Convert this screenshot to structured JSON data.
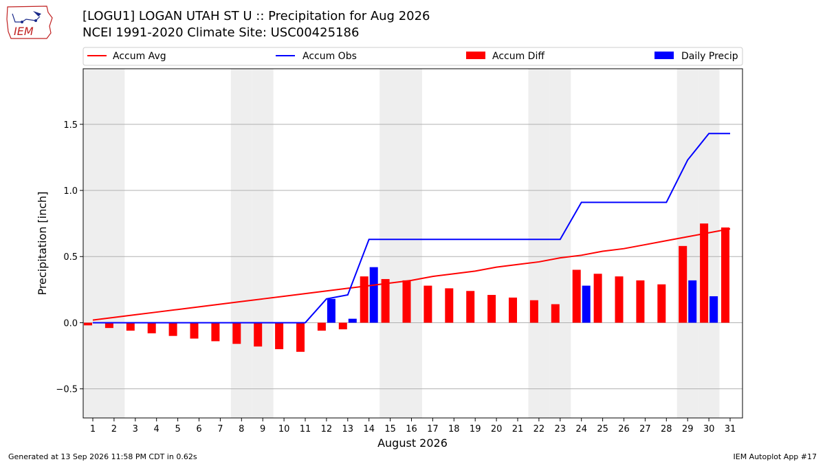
{
  "header": {
    "title_line1": "[LOGU1] LOGAN UTAH ST U :: Precipitation for Aug 2026",
    "title_line2": "NCEI 1991-2020 Climate Site: USC00425186"
  },
  "logo": {
    "text": "IEM"
  },
  "footer": {
    "left": "Generated at 13 Sep 2026 11:58 PM CDT in 0.62s",
    "right": "IEM Autoplot App #17"
  },
  "colors": {
    "avg": "#ff0000",
    "obs": "#0000ff",
    "diff": "#ff0000",
    "daily": "#0000ff",
    "weekend": "#eeeeee"
  },
  "chart_data": {
    "type": "bar",
    "xlabel": "August 2026",
    "ylabel": "Precipitation [inch]",
    "ylim": [
      -0.72,
      1.92
    ],
    "yticks": [
      -0.5,
      0.0,
      0.5,
      1.0,
      1.5
    ],
    "ytick_labels": [
      "−0.5",
      "0.0",
      "0.5",
      "1.0",
      "1.5"
    ],
    "grid": "horizontal",
    "legend_position": "top",
    "weekend_days": [
      1,
      2,
      8,
      9,
      15,
      16,
      22,
      23,
      29,
      30
    ],
    "x": [
      1,
      2,
      3,
      4,
      5,
      6,
      7,
      8,
      9,
      10,
      11,
      12,
      13,
      14,
      15,
      16,
      17,
      18,
      19,
      20,
      21,
      22,
      23,
      24,
      25,
      26,
      27,
      28,
      29,
      30,
      31
    ],
    "series": [
      {
        "name": "Accum Avg",
        "kind": "line",
        "values": [
          0.02,
          0.04,
          0.06,
          0.08,
          0.1,
          0.12,
          0.14,
          0.16,
          0.18,
          0.2,
          0.22,
          0.24,
          0.26,
          0.28,
          0.3,
          0.32,
          0.35,
          0.37,
          0.39,
          0.42,
          0.44,
          0.46,
          0.49,
          0.51,
          0.54,
          0.56,
          0.59,
          0.62,
          0.65,
          0.68,
          0.71
        ]
      },
      {
        "name": "Accum Obs",
        "kind": "line",
        "values": [
          0,
          0,
          0,
          0,
          0,
          0,
          0,
          0,
          0,
          0,
          0,
          0.18,
          0.21,
          0.63,
          0.63,
          0.63,
          0.63,
          0.63,
          0.63,
          0.63,
          0.63,
          0.63,
          0.63,
          0.91,
          0.91,
          0.91,
          0.91,
          0.91,
          1.23,
          1.43,
          1.43
        ]
      },
      {
        "name": "Accum Diff",
        "kind": "bar",
        "values": [
          -0.02,
          -0.04,
          -0.06,
          -0.08,
          -0.1,
          -0.12,
          -0.14,
          -0.16,
          -0.18,
          -0.2,
          -0.22,
          -0.06,
          -0.05,
          0.35,
          0.33,
          0.32,
          0.28,
          0.26,
          0.24,
          0.21,
          0.19,
          0.17,
          0.14,
          0.4,
          0.37,
          0.35,
          0.32,
          0.29,
          0.58,
          0.75,
          0.72
        ]
      },
      {
        "name": "Daily Precip",
        "kind": "bar",
        "values": [
          0,
          0,
          0,
          0,
          0,
          0,
          0,
          0,
          0,
          0,
          0,
          0.18,
          0.03,
          0.42,
          0,
          0,
          0,
          0,
          0,
          0,
          0,
          0,
          0,
          0.28,
          0,
          0,
          0,
          0,
          0.32,
          0.2,
          0
        ]
      }
    ]
  }
}
